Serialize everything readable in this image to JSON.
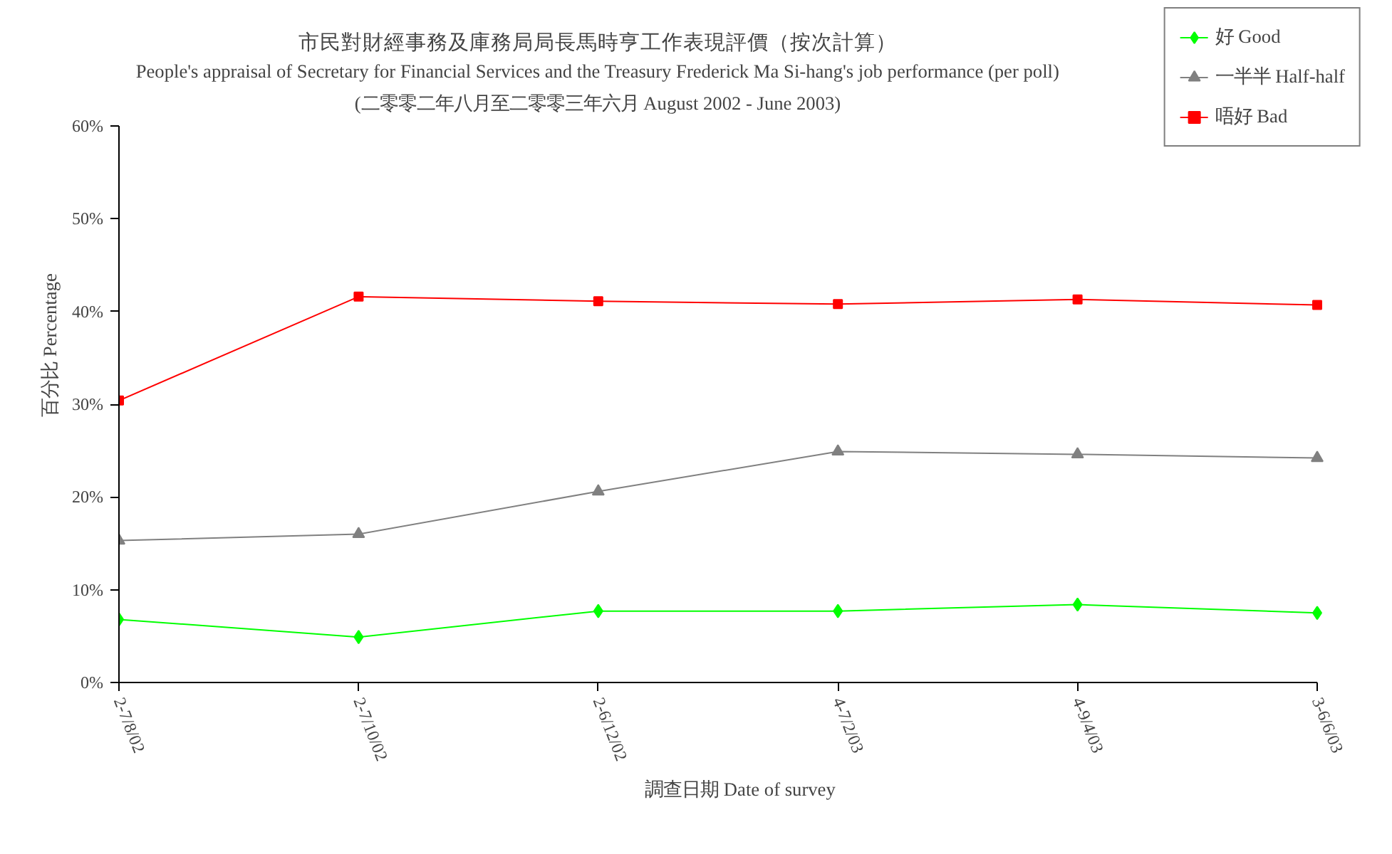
{
  "chart_data": {
    "type": "line",
    "title": "市民對財經事務及庫務局局長馬時亨工作表現評價（按次計算）",
    "subtitle": "People's appraisal of Secretary for Financial Services and the Treasury Frederick Ma Si-hang's job performance (per poll)\n(二零零二年八月至二零零三年六月 August 2002 - June 2003)",
    "xlabel": "調查日期 Date of survey",
    "ylabel": "百分比 Percentage",
    "categories": [
      "2-7/8/02",
      "2-7/10/02",
      "2-6/12/02",
      "4-7/2/03",
      "4-9/4/03",
      "3-6/6/03"
    ],
    "series": [
      {
        "name": "好 Good",
        "color": "#00ff00",
        "marker": "diamond",
        "values": [
          6.8,
          4.9,
          7.7,
          7.7,
          8.4,
          7.5
        ]
      },
      {
        "name": "一半半 Half-half",
        "color": "#808080",
        "marker": "triangle",
        "values": [
          15.3,
          16.0,
          20.6,
          24.9,
          24.6,
          24.2
        ]
      },
      {
        "name": "唔好 Bad",
        "color": "#ff0000",
        "marker": "square",
        "values": [
          30.4,
          41.6,
          41.1,
          40.8,
          41.3,
          40.7
        ]
      }
    ],
    "ylim": [
      0,
      60
    ],
    "yticks": [
      {
        "value": 0,
        "label": "0%"
      },
      {
        "value": 10,
        "label": "10%"
      },
      {
        "value": 20,
        "label": "20%"
      },
      {
        "value": 30,
        "label": "30%"
      },
      {
        "value": 40,
        "label": "40%"
      },
      {
        "value": 50,
        "label": "50%"
      },
      {
        "value": 60,
        "label": "60%"
      }
    ],
    "grid": false,
    "legend": "top right",
    "line_style": "solid"
  }
}
